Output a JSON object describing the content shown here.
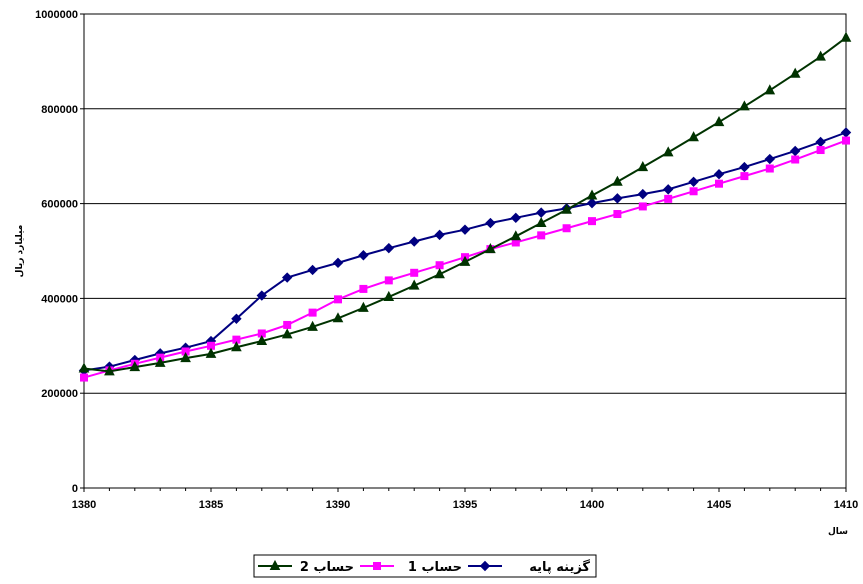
{
  "chart_data": {
    "type": "line",
    "title": "",
    "xlabel": "سال",
    "ylabel": "میلیارد ریال",
    "xlim": [
      1380,
      1410
    ],
    "ylim": [
      0,
      1000000
    ],
    "x_ticks": [
      "1380",
      "1385",
      "1390",
      "1395",
      "1400",
      "1405",
      "1410"
    ],
    "y_ticks": [
      "0",
      "200000",
      "400000",
      "600000",
      "800000",
      "1000000"
    ],
    "grid": "horizontal",
    "legend_position": "bottom",
    "x": [
      1380,
      1381,
      1382,
      1383,
      1384,
      1385,
      1386,
      1387,
      1388,
      1389,
      1390,
      1391,
      1392,
      1393,
      1394,
      1395,
      1396,
      1397,
      1398,
      1399,
      1400,
      1401,
      1402,
      1403,
      1404,
      1405,
      1406,
      1407,
      1408,
      1409,
      1410
    ],
    "series": [
      {
        "name": "گزینه پایه",
        "color": "#000080",
        "marker": "diamond",
        "values": [
          248000,
          256000,
          270000,
          284000,
          296000,
          310000,
          357000,
          406000,
          444000,
          460000,
          475000,
          491000,
          506000,
          520000,
          534000,
          545000,
          559000,
          570000,
          581000,
          590000,
          601000,
          611000,
          620000,
          630000,
          646000,
          662000,
          677000,
          694000,
          711000,
          730000,
          750000
        ]
      },
      {
        "name": "حساب 1",
        "color": "#FF00FF",
        "marker": "square",
        "values": [
          233000,
          248000,
          262000,
          275000,
          288000,
          300000,
          313000,
          326000,
          344000,
          370000,
          398000,
          420000,
          438000,
          454000,
          470000,
          487000,
          504000,
          518000,
          533000,
          548000,
          563000,
          578000,
          594000,
          610000,
          626000,
          642000,
          658000,
          674000,
          693000,
          713000,
          733000
        ]
      },
      {
        "name": "حساب 2",
        "color": "#003300",
        "marker": "triangle",
        "values": [
          252000,
          246000,
          255000,
          264000,
          274000,
          283000,
          297000,
          310000,
          324000,
          340000,
          358000,
          380000,
          403000,
          427000,
          451000,
          477000,
          504000,
          531000,
          559000,
          587000,
          617000,
          646000,
          677000,
          708000,
          740000,
          772000,
          805000,
          839000,
          874000,
          910000,
          950000
        ]
      }
    ]
  }
}
